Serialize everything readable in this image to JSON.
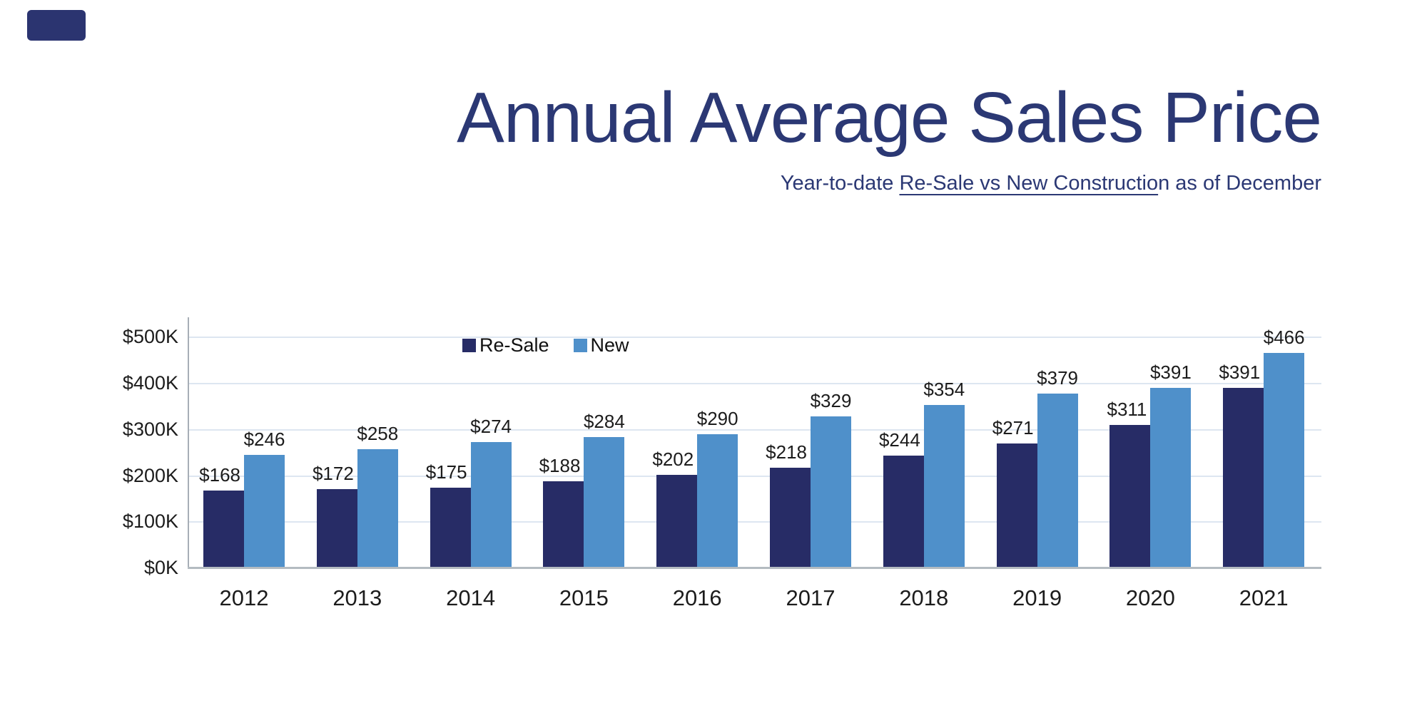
{
  "page": {
    "background": "#ffffff"
  },
  "decor": {
    "corner_accent_color": "#2b3470"
  },
  "header": {
    "title": "Annual Average Sales Price",
    "subtitle_prefix": "Year-to-date ",
    "subtitle_underlined": "Re-Sale vs New Constructio",
    "subtitle_suffix": "n as of December",
    "subtitle_full": "Year-to-date Re-Sale vs New Construction as of December",
    "text_color": "#2b3874"
  },
  "chart_data": {
    "type": "bar",
    "title": "Annual Average Sales Price",
    "xlabel": "",
    "ylabel": "",
    "categories": [
      "2012",
      "2013",
      "2014",
      "2015",
      "2016",
      "2017",
      "2018",
      "2019",
      "2020",
      "2021"
    ],
    "series": [
      {
        "name": "Re-Sale",
        "color": "#272c66",
        "values": [
          168,
          172,
          175,
          188,
          202,
          218,
          244,
          271,
          311,
          391
        ],
        "labels": [
          "$168",
          "$172",
          "$175",
          "$188",
          "$202",
          "$218",
          "$244",
          "$271",
          "$311",
          "$391"
        ]
      },
      {
        "name": "New",
        "color": "#4f90ca",
        "values": [
          246,
          258,
          274,
          284,
          290,
          329,
          354,
          379,
          391,
          466
        ],
        "labels": [
          "$246",
          "$258",
          "$274",
          "$284",
          "$290",
          "$329",
          "$354",
          "$379",
          "$391",
          "$466"
        ]
      }
    ],
    "value_unit": "thousand dollars",
    "ylim": [
      0,
      500
    ],
    "yticks": [
      {
        "value": 0,
        "label": "$0K"
      },
      {
        "value": 100,
        "label": "$100K"
      },
      {
        "value": 200,
        "label": "$200K"
      },
      {
        "value": 300,
        "label": "$300K"
      },
      {
        "value": 400,
        "label": "$400K"
      },
      {
        "value": 500,
        "label": "$500K"
      }
    ],
    "grid": true,
    "legend_position": "inside-top-left",
    "colors": {
      "gridline": "#dde6f1",
      "y_axis_line": "#a7aeb6",
      "x_axis_line": "#b4bbc1",
      "label_text": "#1c1c1c"
    }
  }
}
